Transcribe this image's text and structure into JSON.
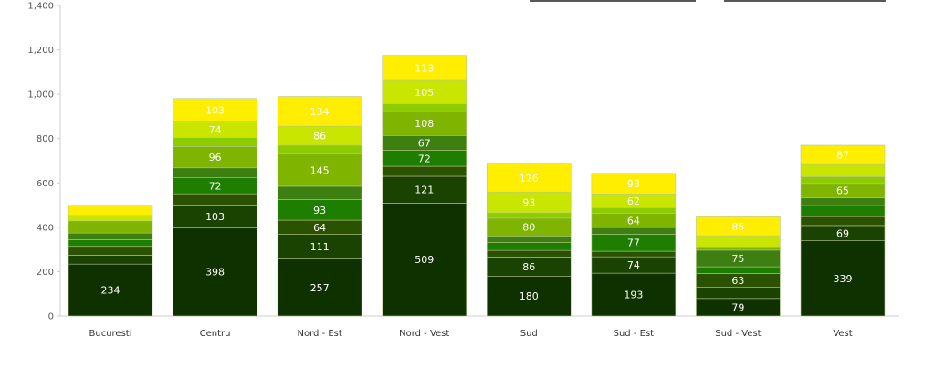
{
  "chart_data": {
    "type": "bar",
    "stacked": true,
    "title": "",
    "xlabel": "",
    "ylabel": "",
    "ylim": [
      0,
      1400
    ],
    "yticks": [
      0,
      200,
      400,
      600,
      800,
      1000,
      1200,
      1400
    ],
    "ytick_labels": [
      "0",
      "200",
      "400",
      "600",
      "800",
      "1,000",
      "1,200",
      "1,400"
    ],
    "categories": [
      "Bucuresti",
      "Centru",
      "Nord - Est",
      "Nord - Vest",
      "Sud",
      "Sud - Est",
      "Sud - Vest",
      "Vest"
    ],
    "grid": false,
    "legend": "top (partially visible, no text)",
    "series_colors": [
      "#0f3100",
      "#1a4200",
      "#2b5200",
      "#1e7e00",
      "#3e7f12",
      "#7fb400",
      "#8ccc00",
      "#c8e600",
      "#ffee00"
    ],
    "segment_values": [
      [
        234,
        40,
        40,
        30,
        30,
        55,
        0,
        25,
        45
      ],
      [
        398,
        103,
        50,
        72,
        45,
        96,
        40,
        74,
        103
      ],
      [
        257,
        111,
        64,
        93,
        60,
        145,
        40,
        86,
        134
      ],
      [
        509,
        121,
        45,
        72,
        67,
        108,
        35,
        105,
        113
      ],
      [
        180,
        86,
        30,
        35,
        30,
        80,
        25,
        93,
        126
      ],
      [
        193,
        74,
        25,
        77,
        30,
        64,
        25,
        62,
        93
      ],
      [
        79,
        50,
        63,
        30,
        75,
        15,
        0,
        50,
        85
      ],
      [
        339,
        69,
        40,
        50,
        35,
        65,
        30,
        55,
        87
      ]
    ],
    "data_labels": [
      [
        234,
        null,
        null,
        null,
        null,
        null,
        null,
        null,
        null
      ],
      [
        398,
        103,
        null,
        72,
        null,
        96,
        null,
        74,
        103
      ],
      [
        257,
        111,
        64,
        93,
        null,
        145,
        null,
        86,
        134
      ],
      [
        509,
        121,
        null,
        72,
        67,
        108,
        null,
        105,
        113
      ],
      [
        180,
        86,
        null,
        null,
        null,
        80,
        null,
        93,
        126
      ],
      [
        193,
        74,
        null,
        77,
        null,
        64,
        null,
        62,
        93
      ],
      [
        79,
        null,
        63,
        null,
        75,
        null,
        null,
        null,
        85
      ],
      [
        339,
        69,
        null,
        null,
        null,
        65,
        null,
        null,
        87
      ]
    ]
  }
}
